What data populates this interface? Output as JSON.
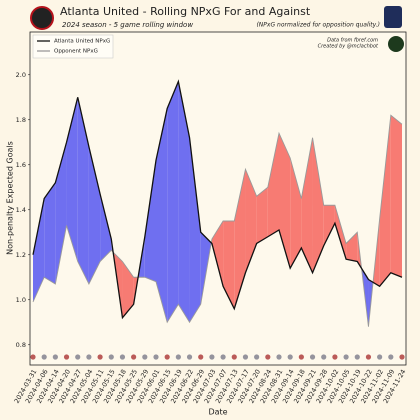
{
  "chart_data": {
    "type": "line",
    "title": "Atlanta United - Rolling NPxG For and Against",
    "subtitle": "2024 season - 5 game rolling window",
    "note": "(NPxG normalized for opposition quality.)",
    "source": "Data from fbref.com",
    "credit": "Created by @mclachbot",
    "x_label": "Date",
    "y_label": "Non-penalty Expected Goals",
    "categories": [
      "2024-03-31",
      "2024-04-06",
      "2024-04-14",
      "2024-04-20",
      "2024-04-27",
      "2024-05-04",
      "2024-05-11",
      "2024-05-15",
      "2024-05-18",
      "2024-05-25",
      "2024-05-29",
      "2024-06-01",
      "2024-06-15",
      "2024-06-19",
      "2024-06-22",
      "2024-06-29",
      "2024-07-03",
      "2024-07-07",
      "2024-07-13",
      "2024-07-17",
      "2024-07-20",
      "2024-08-24",
      "2024-08-31",
      "2024-09-14",
      "2024-09-18",
      "2024-09-21",
      "2024-09-28",
      "2024-10-02",
      "2024-10-05",
      "2024-10-19",
      "2024-10-22",
      "2024-11-02",
      "2024-11-09",
      "2024-11-24"
    ],
    "series": [
      {
        "name": "Atlanta United NPxG",
        "color": "#111111",
        "values": [
          1.2,
          1.45,
          1.52,
          1.7,
          1.9,
          1.68,
          1.47,
          1.27,
          0.92,
          0.98,
          1.28,
          1.62,
          1.85,
          1.97,
          1.72,
          1.3,
          1.25,
          1.06,
          0.96,
          1.12,
          1.25,
          1.28,
          1.31,
          1.14,
          1.23,
          1.12,
          1.24,
          1.34,
          1.18,
          1.17,
          1.09,
          1.06,
          1.12,
          1.1
        ]
      },
      {
        "name": "Opponent NPxG",
        "color": "#9a9a9a",
        "values": [
          0.99,
          1.1,
          1.07,
          1.33,
          1.17,
          1.07,
          1.17,
          1.22,
          1.17,
          1.1,
          1.1,
          1.08,
          0.9,
          0.98,
          0.9,
          0.98,
          1.27,
          1.35,
          1.35,
          1.58,
          1.46,
          1.5,
          1.74,
          1.63,
          1.45,
          1.72,
          1.42,
          1.42,
          1.25,
          1.3,
          0.88,
          1.36,
          1.82,
          1.78
        ]
      }
    ],
    "for_color": "#6f6ff0",
    "against_color": "#f77b73",
    "ylim": [
      0.71,
      2.19
    ],
    "yticks": [
      0.8,
      {
        "value": 1,
        "label": "1.0"
      },
      1.2,
      1.4,
      1.6,
      1.8,
      {
        "value": 2,
        "label": "2.0"
      }
    ],
    "legend": "upper left",
    "grid": false
  }
}
